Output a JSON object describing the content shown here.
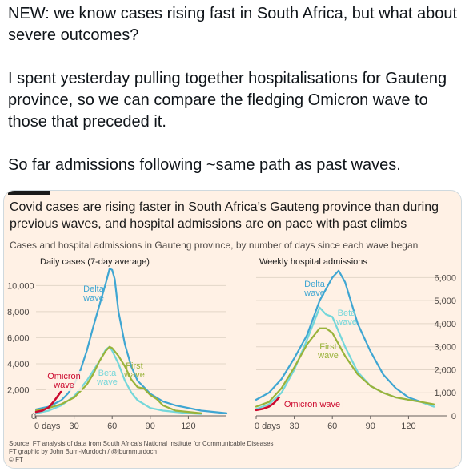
{
  "tweet": {
    "paragraphs": [
      "NEW: we know cases rising fast in South Africa, but what about severe outcomes?",
      "I spent yesterday pulling together hospitalisations for Gauteng province, so we can compare the fledging Omicron wave to those that preceded it.",
      "So far admissions following ~same path as past waves."
    ]
  },
  "card": {
    "title": "Covid cases are rising faster in South Africa’s Gauteng province than during previous waves, and hospital admissions are on pace with past climbs",
    "subtitle": "Cases and hospital admissions in Gauteng province, by number of days since each wave began",
    "source_lines": [
      "Source: FT analysis of data from South Africa’s National Institute for Communicable Diseases",
      "FT graphic by John Burn-Murdoch / @jburnmurdoch",
      "© FT"
    ]
  },
  "colors": {
    "delta": "#3fa6d2",
    "beta": "#74d7da",
    "first": "#99b33a",
    "omicron": "#cc0a2f",
    "grid": "#e3d6c8",
    "background": "#fff1e5"
  },
  "chart_data": [
    {
      "type": "line",
      "title": "Daily cases (7-day average)",
      "xlabel": "",
      "ylabel": "",
      "xlim": [
        0,
        150
      ],
      "ylim": [
        0,
        11500
      ],
      "x_ticks": [
        0,
        30,
        60,
        90,
        120
      ],
      "x_tick_labels": [
        "0 days",
        "30",
        "60",
        "90",
        "120"
      ],
      "y_ticks": [
        0,
        2000,
        4000,
        6000,
        8000,
        10000
      ],
      "y_tick_labels": [
        "0",
        "2,000",
        "4,000",
        "6,000",
        "8,000",
        "10,000"
      ],
      "y_axis_side": "left",
      "grid": true,
      "series": [
        {
          "name": "Delta wave",
          "label_lines": [
            "Delta",
            "wave"
          ],
          "color_key": "delta",
          "x": [
            0,
            10,
            20,
            25,
            30,
            35,
            40,
            45,
            50,
            55,
            58,
            60,
            62,
            65,
            70,
            75,
            80,
            85,
            90,
            100,
            110,
            120,
            130,
            140,
            150
          ],
          "y": [
            500,
            700,
            1200,
            1700,
            2400,
            3500,
            5000,
            6800,
            8500,
            10200,
            11300,
            11200,
            10500,
            8000,
            5500,
            3800,
            2700,
            2200,
            1700,
            1100,
            800,
            600,
            400,
            300,
            200
          ]
        },
        {
          "name": "Beta wave",
          "label_lines": [
            "Beta",
            "wave"
          ],
          "color_key": "beta",
          "x": [
            0,
            10,
            20,
            30,
            40,
            50,
            55,
            58,
            60,
            65,
            70,
            75,
            80,
            90,
            100,
            110,
            120,
            130
          ],
          "y": [
            200,
            400,
            800,
            1500,
            2700,
            4200,
            5100,
            5300,
            5000,
            4000,
            2700,
            1800,
            1200,
            600,
            400,
            300,
            200,
            150
          ]
        },
        {
          "name": "First wave",
          "label_lines": [
            "First",
            "wave"
          ],
          "color_key": "first",
          "x": [
            0,
            10,
            20,
            30,
            40,
            45,
            50,
            55,
            58,
            60,
            65,
            70,
            75,
            80,
            85,
            90,
            95,
            100,
            110,
            120,
            130
          ],
          "y": [
            400,
            600,
            900,
            1400,
            2400,
            3200,
            4200,
            5000,
            5300,
            5200,
            4600,
            3800,
            2800,
            2200,
            2100,
            1600,
            1300,
            800,
            400,
            300,
            200
          ]
        },
        {
          "name": "Omicron wave",
          "label_lines": [
            "Omicron",
            "wave"
          ],
          "color_key": "omicron",
          "x": [
            0,
            5,
            10,
            14,
            17,
            20
          ],
          "y": [
            300,
            400,
            650,
            1100,
            1500,
            1900
          ]
        }
      ]
    },
    {
      "type": "line",
      "title": "Weekly hospital admissions",
      "xlabel": "",
      "ylabel": "",
      "xlim": [
        0,
        150
      ],
      "ylim": [
        0,
        6500
      ],
      "x_ticks": [
        0,
        30,
        60,
        90,
        120
      ],
      "x_tick_labels": [
        "0 days",
        "30",
        "60",
        "90",
        "120"
      ],
      "y_ticks": [
        0,
        1000,
        2000,
        3000,
        4000,
        5000,
        6000
      ],
      "y_tick_labels": [
        "0",
        "1,000",
        "2,000",
        "3,000",
        "4,000",
        "5,000",
        "6,000"
      ],
      "y_axis_side": "right",
      "grid": true,
      "series": [
        {
          "name": "Delta wave",
          "label_lines": [
            "Delta",
            "wave"
          ],
          "color_key": "delta",
          "x": [
            0,
            10,
            20,
            30,
            40,
            50,
            60,
            65,
            70,
            80,
            90,
            100,
            110,
            120,
            130,
            140
          ],
          "y": [
            700,
            1000,
            1600,
            2500,
            3500,
            5000,
            6000,
            6300,
            5800,
            4000,
            2800,
            1800,
            1200,
            800,
            600,
            400
          ]
        },
        {
          "name": "Beta wave",
          "label_lines": [
            "Beta",
            "wave"
          ],
          "color_key": "beta",
          "x": [
            0,
            10,
            20,
            30,
            40,
            50,
            55,
            60,
            70,
            80,
            90,
            100,
            110,
            120,
            130,
            140
          ],
          "y": [
            300,
            500,
            1000,
            2000,
            3300,
            4700,
            4400,
            4300,
            3000,
            1900,
            1300,
            1000,
            800,
            700,
            600,
            400
          ]
        },
        {
          "name": "First wave",
          "label_lines": [
            "First",
            "wave"
          ],
          "color_key": "first",
          "x": [
            0,
            10,
            20,
            30,
            40,
            50,
            55,
            60,
            70,
            80,
            90,
            100,
            110,
            120,
            130,
            140
          ],
          "y": [
            400,
            600,
            1200,
            2100,
            3100,
            3800,
            3800,
            3600,
            2600,
            1800,
            1300,
            1000,
            800,
            700,
            600,
            500
          ]
        },
        {
          "name": "Omicron wave",
          "label_lines": [
            "Omicron wave"
          ],
          "color_key": "omicron",
          "x": [
            0,
            5,
            10,
            14,
            18
          ],
          "y": [
            250,
            300,
            400,
            550,
            800
          ]
        }
      ]
    }
  ]
}
